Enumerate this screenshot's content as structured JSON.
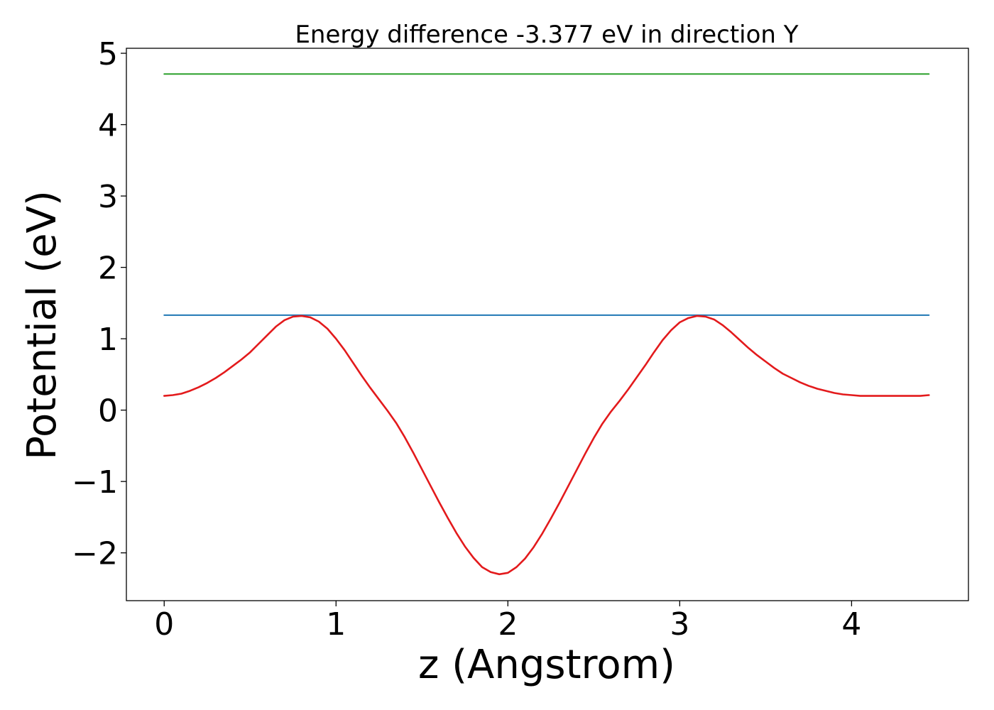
{
  "chart_data": {
    "type": "line",
    "title": "Energy difference -3.377 eV in direction Y",
    "xlabel": "z (Angstrom)",
    "ylabel": "Potential (eV)",
    "xlim": [
      -0.22,
      4.68
    ],
    "ylim": [
      -2.67,
      5.07
    ],
    "xticks": [
      0,
      1,
      2,
      3,
      4
    ],
    "xtick_labels": [
      "0",
      "1",
      "2",
      "3",
      "4"
    ],
    "yticks": [
      -2,
      -1,
      0,
      1,
      2,
      3,
      4,
      5
    ],
    "ytick_labels": [
      "−2",
      "−1",
      "0",
      "1",
      "2",
      "3",
      "4",
      "5"
    ],
    "grid": false,
    "legend": "none",
    "series": [
      {
        "color": "#2ca02c",
        "x": [
          0.0,
          4.45
        ],
        "y": [
          4.71,
          4.71
        ]
      },
      {
        "color": "#1f77b4",
        "x": [
          0.0,
          4.45
        ],
        "y": [
          1.33,
          1.33
        ]
      },
      {
        "color": "#e31a1c",
        "x": [
          0.0,
          0.05,
          0.1,
          0.15,
          0.2,
          0.25,
          0.3,
          0.35,
          0.4,
          0.45,
          0.5,
          0.55,
          0.6,
          0.65,
          0.7,
          0.75,
          0.8,
          0.85,
          0.9,
          0.95,
          1.0,
          1.05,
          1.1,
          1.15,
          1.2,
          1.25,
          1.3,
          1.35,
          1.4,
          1.45,
          1.5,
          1.55,
          1.6,
          1.65,
          1.7,
          1.75,
          1.8,
          1.85,
          1.9,
          1.95,
          2.0,
          2.05,
          2.1,
          2.15,
          2.2,
          2.25,
          2.3,
          2.35,
          2.4,
          2.45,
          2.5,
          2.55,
          2.6,
          2.65,
          2.7,
          2.75,
          2.8,
          2.85,
          2.9,
          2.95,
          3.0,
          3.05,
          3.1,
          3.15,
          3.2,
          3.25,
          3.3,
          3.35,
          3.4,
          3.45,
          3.5,
          3.55,
          3.6,
          3.65,
          3.7,
          3.75,
          3.8,
          3.85,
          3.9,
          3.95,
          4.0,
          4.05,
          4.1,
          4.15,
          4.2,
          4.25,
          4.3,
          4.35,
          4.4,
          4.45
        ],
        "y": [
          0.2,
          0.21,
          0.23,
          0.27,
          0.32,
          0.38,
          0.45,
          0.53,
          0.62,
          0.71,
          0.81,
          0.93,
          1.05,
          1.17,
          1.26,
          1.31,
          1.32,
          1.3,
          1.24,
          1.14,
          1.0,
          0.84,
          0.66,
          0.48,
          0.31,
          0.15,
          -0.01,
          -0.18,
          -0.38,
          -0.6,
          -0.83,
          -1.06,
          -1.29,
          -1.51,
          -1.72,
          -1.91,
          -2.07,
          -2.2,
          -2.27,
          -2.3,
          -2.28,
          -2.2,
          -2.08,
          -1.92,
          -1.73,
          -1.52,
          -1.3,
          -1.07,
          -0.84,
          -0.61,
          -0.39,
          -0.19,
          -0.02,
          0.13,
          0.29,
          0.46,
          0.63,
          0.81,
          0.98,
          1.12,
          1.23,
          1.29,
          1.32,
          1.31,
          1.27,
          1.19,
          1.09,
          0.98,
          0.87,
          0.77,
          0.68,
          0.59,
          0.51,
          0.45,
          0.39,
          0.34,
          0.3,
          0.27,
          0.24,
          0.22,
          0.21,
          0.2,
          0.2,
          0.2,
          0.2,
          0.2,
          0.2,
          0.2,
          0.2,
          0.21
        ]
      }
    ]
  }
}
